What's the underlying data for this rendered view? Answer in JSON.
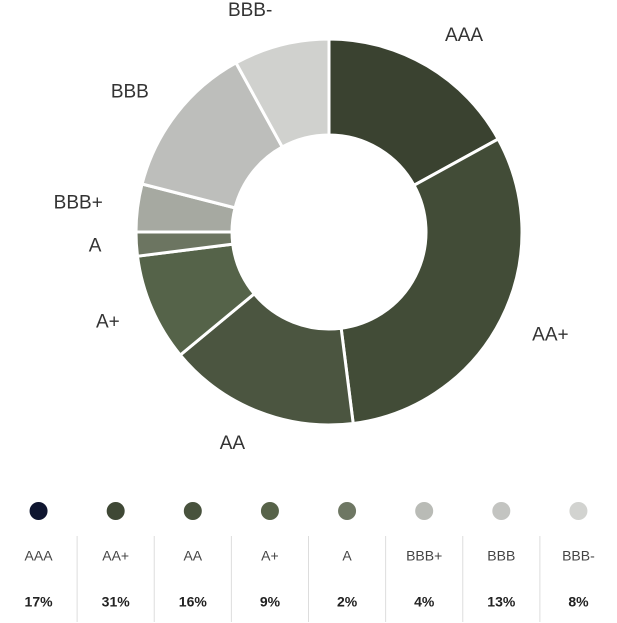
{
  "chart_data": {
    "type": "donut",
    "categories": [
      "AAA",
      "AA+",
      "AA",
      "A+",
      "A",
      "BBB+",
      "BBB",
      "BBB-"
    ],
    "values": [
      17,
      31,
      16,
      9,
      2,
      4,
      13,
      8
    ],
    "value_labels": [
      "17%",
      "31%",
      "16%",
      "9%",
      "2%",
      "4%",
      "13%",
      "8%"
    ],
    "colors": [
      "#3a4230",
      "#424c37",
      "#4b5540",
      "#556349",
      "#6c7561",
      "#a6a9a1",
      "#bdbebb",
      "#d0d1ce"
    ],
    "legend_colors": [
      "#0f1630",
      "#3f4835",
      "#48523d",
      "#576349",
      "#6e7763",
      "#b9bbb6",
      "#c3c4c1",
      "#d2d3d0"
    ]
  }
}
